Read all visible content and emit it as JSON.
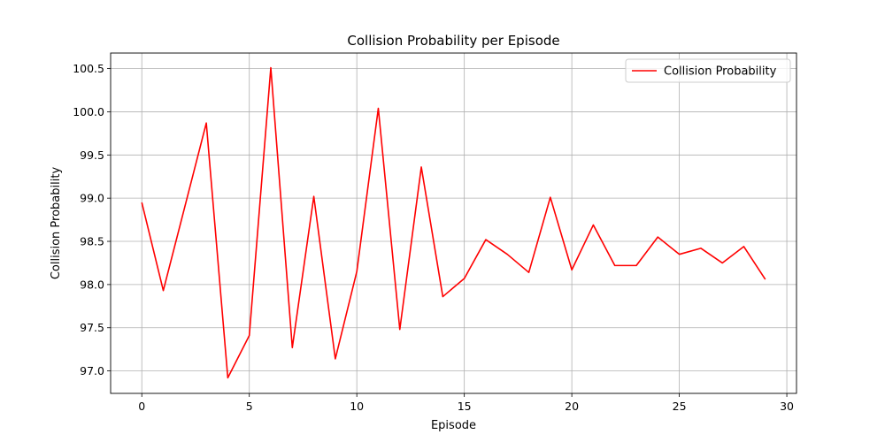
{
  "chart_data": {
    "type": "line",
    "title": "Collision Probability per Episode",
    "xlabel": "Episode",
    "ylabel": "Collision Probability",
    "xlim": [
      -1.45,
      30.45
    ],
    "ylim": [
      96.74,
      100.68
    ],
    "xticks": [
      0,
      5,
      10,
      15,
      20,
      25,
      30
    ],
    "yticks": [
      97.0,
      97.5,
      98.0,
      98.5,
      99.0,
      99.5,
      100.0,
      100.5
    ],
    "ytick_labels": [
      "97.0",
      "97.5",
      "98.0",
      "98.5",
      "99.0",
      "99.5",
      "100.0",
      "100.5"
    ],
    "grid": true,
    "legend_position": "top-right",
    "series": [
      {
        "name": "Collision Probability",
        "color": "#ff0000",
        "x": [
          0,
          1,
          2,
          3,
          4,
          5,
          6,
          7,
          8,
          9,
          10,
          11,
          12,
          13,
          14,
          15,
          16,
          17,
          18,
          19,
          20,
          21,
          22,
          23,
          24,
          25,
          26,
          27,
          28,
          29
        ],
        "values": [
          98.95,
          97.93,
          98.9,
          99.87,
          96.92,
          97.41,
          100.51,
          97.27,
          99.02,
          97.14,
          98.15,
          100.04,
          97.48,
          99.36,
          97.86,
          98.07,
          98.52,
          98.35,
          98.14,
          99.01,
          98.17,
          98.69,
          98.22,
          98.22,
          98.55,
          98.35,
          98.42,
          98.25,
          98.44,
          98.06
        ]
      }
    ]
  }
}
